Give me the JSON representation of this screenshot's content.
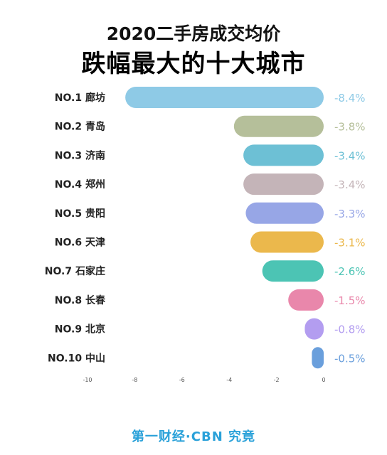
{
  "header": {
    "title_line1": "2020二手房成交均价",
    "title_line2": "跌幅最大的十大城市"
  },
  "chart_data": {
    "type": "bar",
    "orientation": "horizontal",
    "categories": [
      "NO.1 廊坊",
      "NO.2 青岛",
      "NO.3 济南",
      "NO.4 郑州",
      "NO.5 贵阳",
      "NO.6 天津",
      "NO.7 石家庄",
      "NO.8 长春",
      "NO.9 北京",
      "NO.10 中山"
    ],
    "values": [
      -8.4,
      -3.8,
      -3.4,
      -3.4,
      -3.3,
      -3.1,
      -2.6,
      -1.5,
      -0.8,
      -0.5
    ],
    "value_labels": [
      "-8.4%",
      "-3.8%",
      "-3.4%",
      "-3.4%",
      "-3.3%",
      "-3.1%",
      "-2.6%",
      "-1.5%",
      "-0.8%",
      "-0.5%"
    ],
    "colors": [
      "#8ecae6",
      "#b5bf9a",
      "#6dc0d5",
      "#c4b4b8",
      "#97a6e6",
      "#ebb84c",
      "#4cc4b4",
      "#e987ab",
      "#b39df0",
      "#6a9fdc"
    ],
    "xlim": [
      -10,
      0
    ],
    "xticks": [
      "-10",
      "-8",
      "-6",
      "-4",
      "-2",
      "0"
    ],
    "grid": false,
    "legend": "none"
  },
  "footer": {
    "brand": "第一财经·CBN 究竟"
  }
}
